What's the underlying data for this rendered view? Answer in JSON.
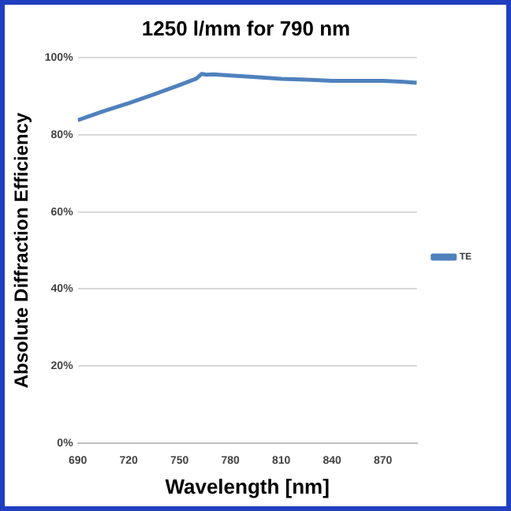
{
  "chart_data": {
    "type": "line",
    "title": "1250 l/mm for 790 nm",
    "xlabel": "Wavelength [nm]",
    "ylabel": "Absolute Diffraction Efficiency",
    "series": [
      {
        "name": "TE",
        "color": "#4f81bd",
        "x": [
          690,
          705,
          720,
          735,
          750,
          760,
          763,
          766,
          770,
          780,
          795,
          810,
          825,
          840,
          855,
          870,
          880,
          890
        ],
        "values": [
          83.8,
          86.1,
          88.2,
          90.5,
          92.9,
          94.6,
          95.8,
          95.6,
          95.7,
          95.4,
          95.0,
          94.5,
          94.3,
          94.0,
          94.0,
          94.0,
          93.8,
          93.5
        ]
      }
    ],
    "xlim": [
      690,
      890
    ],
    "xticks": [
      690,
      720,
      750,
      780,
      810,
      840,
      870
    ],
    "ylim": [
      0,
      100
    ],
    "yticks": [
      {
        "value": 0,
        "label": "0%"
      },
      {
        "value": 20,
        "label": "20%"
      },
      {
        "value": 40,
        "label": "40%"
      },
      {
        "value": 60,
        "label": "60%"
      },
      {
        "value": 80,
        "label": "80%"
      },
      {
        "value": 100,
        "label": "100%"
      }
    ],
    "grid": "y",
    "legend": "right",
    "marker": "none",
    "line_style": "solid"
  }
}
